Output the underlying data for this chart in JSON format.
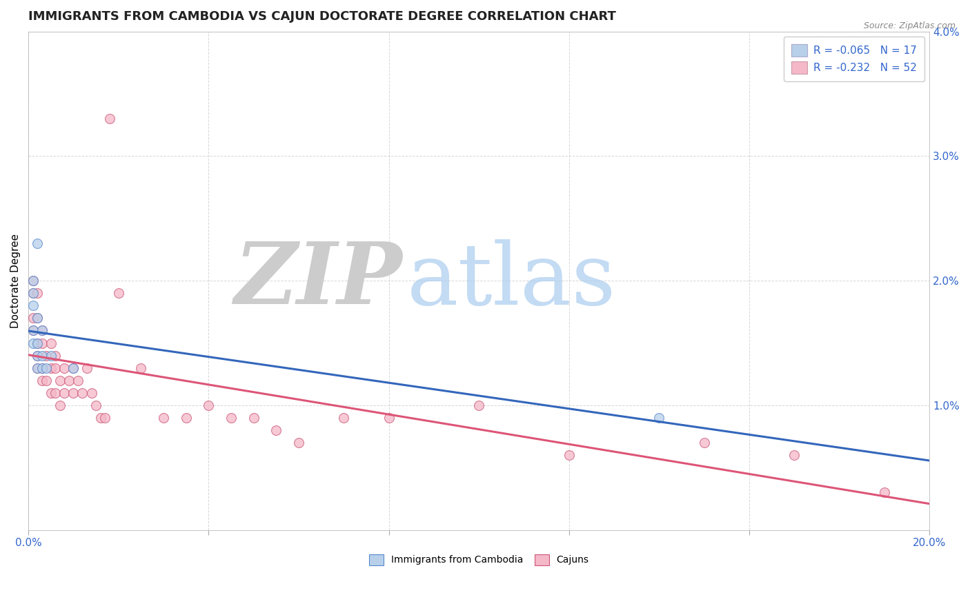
{
  "title": "IMMIGRANTS FROM CAMBODIA VS CAJUN DOCTORATE DEGREE CORRELATION CHART",
  "source_text": "Source: ZipAtlas.com",
  "ylabel": "Doctorate Degree",
  "xlim": [
    0.0,
    0.2
  ],
  "ylim": [
    0.0,
    0.04
  ],
  "xticks": [
    0.0,
    0.04,
    0.08,
    0.12,
    0.16,
    0.2
  ],
  "xtick_labels": [
    "0.0%",
    "",
    "",
    "",
    "",
    "20.0%"
  ],
  "yticks": [
    0.0,
    0.01,
    0.02,
    0.03,
    0.04
  ],
  "ytick_labels": [
    "",
    "1.0%",
    "2.0%",
    "3.0%",
    "4.0%"
  ],
  "legend_r_entries": [
    {
      "label_r": "R = -0.065",
      "label_n": "N = 17",
      "color": "#b8d0ea",
      "text_color_r": "#3366cc",
      "text_color_n": "#333333"
    },
    {
      "label_r": "R = -0.232",
      "label_n": "N = 52",
      "color": "#f4b8c8",
      "text_color_r": "#3366cc",
      "text_color_n": "#333333"
    }
  ],
  "series_cambodia": {
    "x": [
      0.001,
      0.001,
      0.001,
      0.001,
      0.001,
      0.002,
      0.002,
      0.002,
      0.002,
      0.002,
      0.003,
      0.003,
      0.003,
      0.004,
      0.005,
      0.01,
      0.14
    ],
    "y": [
      0.02,
      0.019,
      0.018,
      0.016,
      0.015,
      0.023,
      0.017,
      0.015,
      0.014,
      0.013,
      0.016,
      0.014,
      0.013,
      0.013,
      0.014,
      0.013,
      0.009
    ],
    "color": "#b8d0ea",
    "edge_color": "#5588cc",
    "trend_color": "#3366bb"
  },
  "series_cajun": {
    "x": [
      0.001,
      0.001,
      0.001,
      0.001,
      0.002,
      0.002,
      0.002,
      0.002,
      0.002,
      0.003,
      0.003,
      0.003,
      0.003,
      0.004,
      0.004,
      0.005,
      0.005,
      0.005,
      0.006,
      0.006,
      0.006,
      0.007,
      0.007,
      0.008,
      0.008,
      0.009,
      0.01,
      0.01,
      0.011,
      0.012,
      0.013,
      0.014,
      0.015,
      0.016,
      0.017,
      0.018,
      0.02,
      0.025,
      0.03,
      0.035,
      0.04,
      0.045,
      0.05,
      0.055,
      0.06,
      0.07,
      0.08,
      0.1,
      0.12,
      0.15,
      0.17,
      0.19
    ],
    "y": [
      0.02,
      0.019,
      0.017,
      0.016,
      0.019,
      0.017,
      0.015,
      0.014,
      0.013,
      0.016,
      0.015,
      0.013,
      0.012,
      0.014,
      0.012,
      0.015,
      0.013,
      0.011,
      0.014,
      0.013,
      0.011,
      0.012,
      0.01,
      0.013,
      0.011,
      0.012,
      0.013,
      0.011,
      0.012,
      0.011,
      0.013,
      0.011,
      0.01,
      0.009,
      0.009,
      0.033,
      0.019,
      0.013,
      0.009,
      0.009,
      0.01,
      0.009,
      0.009,
      0.008,
      0.007,
      0.009,
      0.009,
      0.01,
      0.006,
      0.007,
      0.006,
      0.003
    ],
    "color": "#f4b8c8",
    "edge_color": "#cc5577",
    "trend_color": "#dd5577"
  },
  "watermark_zip": "ZIP",
  "watermark_atlas": "atlas",
  "watermark_zip_color": "#cccccc",
  "watermark_atlas_color": "#aaccee",
  "background_color": "#ffffff",
  "grid_color": "#cccccc",
  "title_fontsize": 13,
  "axis_label_fontsize": 11,
  "tick_fontsize": 11,
  "marker_size": 100
}
